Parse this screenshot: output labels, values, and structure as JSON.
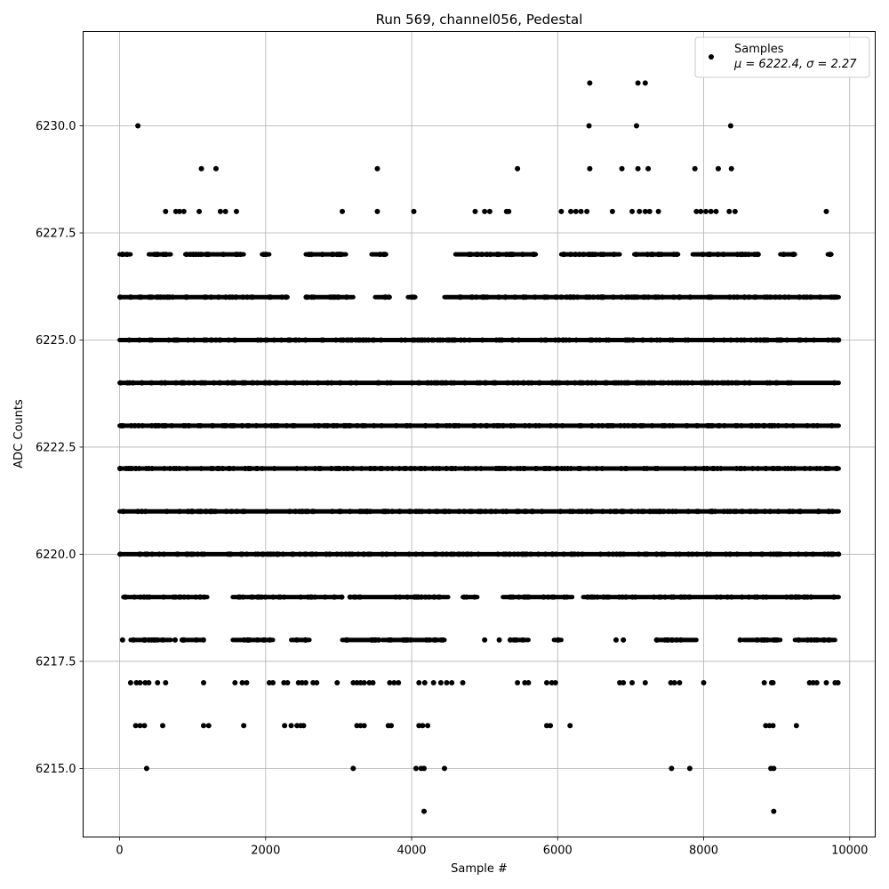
{
  "chart_data": {
    "type": "scatter",
    "title": "Run 569, channel056, Pedestal",
    "xlabel": "Sample #",
    "ylabel": "ADC Counts",
    "xlim": [
      -500,
      10350
    ],
    "ylim": [
      6213.4,
      6232.2
    ],
    "xticks": [
      0,
      2000,
      4000,
      6000,
      8000,
      10000
    ],
    "xtick_labels": [
      "0",
      "2000",
      "4000",
      "6000",
      "8000",
      "10000"
    ],
    "yticks": [
      6215.0,
      6217.5,
      6220.0,
      6222.5,
      6225.0,
      6227.5,
      6230.0
    ],
    "ytick_labels": [
      "6215.0",
      "6217.5",
      "6220.0",
      "6222.5",
      "6225.0",
      "6227.5",
      "6230.0"
    ],
    "grid": true,
    "legend": {
      "placement": "top-right",
      "label": "Samples",
      "stats": "μ = 6222.4, σ = 2.27"
    },
    "marker_color": "#000000",
    "series": [
      {
        "name": "Samples",
        "n_samples": 9850,
        "mean": 6222.4,
        "sigma": 2.27,
        "x_range": [
          0,
          9850
        ],
        "level_coverage": [
          {
            "y": 6222,
            "segments": [
              [
                0,
                9850
              ]
            ]
          },
          {
            "y": 6223,
            "segments": [
              [
                0,
                9850
              ]
            ]
          },
          {
            "y": 6221,
            "segments": [
              [
                0,
                9850
              ]
            ]
          },
          {
            "y": 6224,
            "segments": [
              [
                0,
                9850
              ]
            ]
          },
          {
            "y": 6220,
            "segments": [
              [
                0,
                9850
              ]
            ]
          },
          {
            "y": 6225,
            "segments": [
              [
                0,
                9850
              ]
            ]
          },
          {
            "y": 6226,
            "segments": [
              [
                0,
                2300
              ],
              [
                2550,
                3200
              ],
              [
                3500,
                3700
              ],
              [
                3950,
                4050
              ],
              [
                4450,
                9850
              ]
            ]
          },
          {
            "y": 6219,
            "segments": [
              [
                50,
                1200
              ],
              [
                1550,
                3050
              ],
              [
                3150,
                4500
              ],
              [
                4700,
                4900
              ],
              [
                5250,
                6200
              ],
              [
                6350,
                9850
              ]
            ]
          },
          {
            "y": 6227,
            "segments": [
              [
                0,
                150
              ],
              [
                400,
                700
              ],
              [
                900,
                1700
              ],
              [
                1950,
                2050
              ],
              [
                2550,
                3100
              ],
              [
                3450,
                3650
              ],
              [
                4600,
                5700
              ],
              [
                6050,
                6850
              ],
              [
                7050,
                7650
              ],
              [
                7850,
                8750
              ],
              [
                9050,
                9250
              ],
              [
                9700,
                9750
              ]
            ]
          },
          {
            "y": 6218,
            "segments": [
              [
                150,
                700
              ],
              [
                850,
                1150
              ],
              [
                1550,
                2100
              ],
              [
                2350,
                2600
              ],
              [
                3050,
                3550
              ],
              [
                3600,
                4450
              ],
              [
                5350,
                5600
              ],
              [
                5950,
                6050
              ],
              [
                7350,
                7900
              ],
              [
                8550,
                9050
              ],
              [
                9250,
                9800
              ]
            ]
          }
        ],
        "points": [
          [
            40,
            6218
          ],
          [
            400,
            6218
          ],
          [
            480,
            6218
          ],
          [
            760,
            6218
          ],
          [
            5000,
            6218
          ],
          [
            5200,
            6218
          ],
          [
            6800,
            6218
          ],
          [
            6900,
            6218
          ],
          [
            8500,
            6218
          ],
          [
            150,
            6217
          ],
          [
            230,
            6217
          ],
          [
            280,
            6217
          ],
          [
            350,
            6217
          ],
          [
            400,
            6217
          ],
          [
            520,
            6217
          ],
          [
            630,
            6217
          ],
          [
            1150,
            6217
          ],
          [
            1580,
            6217
          ],
          [
            1680,
            6217
          ],
          [
            1740,
            6217
          ],
          [
            2050,
            6217
          ],
          [
            2100,
            6217
          ],
          [
            2250,
            6217
          ],
          [
            2300,
            6217
          ],
          [
            2450,
            6217
          ],
          [
            2500,
            6217
          ],
          [
            2550,
            6217
          ],
          [
            2650,
            6217
          ],
          [
            2700,
            6217
          ],
          [
            2980,
            6217
          ],
          [
            3200,
            6217
          ],
          [
            3250,
            6217
          ],
          [
            3300,
            6217
          ],
          [
            3350,
            6217
          ],
          [
            3420,
            6217
          ],
          [
            3470,
            6217
          ],
          [
            3700,
            6217
          ],
          [
            3760,
            6217
          ],
          [
            3820,
            6217
          ],
          [
            4100,
            6217
          ],
          [
            4180,
            6217
          ],
          [
            4300,
            6217
          ],
          [
            4400,
            6217
          ],
          [
            4480,
            6217
          ],
          [
            4550,
            6217
          ],
          [
            4700,
            6217
          ],
          [
            5450,
            6217
          ],
          [
            5550,
            6217
          ],
          [
            5600,
            6217
          ],
          [
            5850,
            6217
          ],
          [
            5920,
            6217
          ],
          [
            5970,
            6217
          ],
          [
            6850,
            6217
          ],
          [
            6900,
            6217
          ],
          [
            7020,
            6217
          ],
          [
            7200,
            6217
          ],
          [
            7550,
            6217
          ],
          [
            7600,
            6217
          ],
          [
            7670,
            6217
          ],
          [
            8000,
            6217
          ],
          [
            8830,
            6217
          ],
          [
            8930,
            6217
          ],
          [
            8950,
            6217
          ],
          [
            9450,
            6217
          ],
          [
            9500,
            6217
          ],
          [
            9550,
            6217
          ],
          [
            9680,
            6217
          ],
          [
            9800,
            6217
          ],
          [
            9840,
            6217
          ],
          [
            220,
            6216
          ],
          [
            280,
            6216
          ],
          [
            340,
            6216
          ],
          [
            590,
            6216
          ],
          [
            1150,
            6216
          ],
          [
            1220,
            6216
          ],
          [
            1700,
            6216
          ],
          [
            2260,
            6216
          ],
          [
            2350,
            6216
          ],
          [
            2430,
            6216
          ],
          [
            2480,
            6216
          ],
          [
            2520,
            6216
          ],
          [
            3250,
            6216
          ],
          [
            3300,
            6216
          ],
          [
            3350,
            6216
          ],
          [
            3680,
            6216
          ],
          [
            3720,
            6216
          ],
          [
            4100,
            6216
          ],
          [
            4150,
            6216
          ],
          [
            4220,
            6216
          ],
          [
            5850,
            6216
          ],
          [
            5900,
            6216
          ],
          [
            6170,
            6216
          ],
          [
            8850,
            6216
          ],
          [
            8900,
            6216
          ],
          [
            8950,
            6216
          ],
          [
            9270,
            6216
          ],
          [
            370,
            6215
          ],
          [
            3200,
            6215
          ],
          [
            4060,
            6215
          ],
          [
            4130,
            6215
          ],
          [
            4170,
            6215
          ],
          [
            4450,
            6215
          ],
          [
            7560,
            6215
          ],
          [
            7810,
            6215
          ],
          [
            8920,
            6215
          ],
          [
            8960,
            6215
          ],
          [
            4170,
            6214
          ],
          [
            8960,
            6214
          ],
          [
            630,
            6228
          ],
          [
            770,
            6228
          ],
          [
            820,
            6228
          ],
          [
            880,
            6228
          ],
          [
            1090,
            6228
          ],
          [
            1380,
            6228
          ],
          [
            1450,
            6228
          ],
          [
            1600,
            6228
          ],
          [
            3050,
            6228
          ],
          [
            3530,
            6228
          ],
          [
            4030,
            6228
          ],
          [
            4870,
            6228
          ],
          [
            5000,
            6228
          ],
          [
            5070,
            6228
          ],
          [
            5300,
            6228
          ],
          [
            5330,
            6228
          ],
          [
            6050,
            6228
          ],
          [
            6180,
            6228
          ],
          [
            6250,
            6228
          ],
          [
            6320,
            6228
          ],
          [
            6400,
            6228
          ],
          [
            6750,
            6228
          ],
          [
            7020,
            6228
          ],
          [
            7120,
            6228
          ],
          [
            7200,
            6228
          ],
          [
            7260,
            6228
          ],
          [
            7380,
            6228
          ],
          [
            7900,
            6228
          ],
          [
            7960,
            6228
          ],
          [
            8030,
            6228
          ],
          [
            8100,
            6228
          ],
          [
            8170,
            6228
          ],
          [
            8350,
            6228
          ],
          [
            8430,
            6228
          ],
          [
            9680,
            6228
          ],
          [
            1120,
            6229
          ],
          [
            1320,
            6229
          ],
          [
            3530,
            6229
          ],
          [
            5450,
            6229
          ],
          [
            6440,
            6229
          ],
          [
            6880,
            6229
          ],
          [
            7100,
            6229
          ],
          [
            7240,
            6229
          ],
          [
            7880,
            6229
          ],
          [
            8200,
            6229
          ],
          [
            8380,
            6229
          ],
          [
            250,
            6230
          ],
          [
            6430,
            6230
          ],
          [
            7080,
            6230
          ],
          [
            8370,
            6230
          ],
          [
            6440,
            6231
          ],
          [
            7100,
            6231
          ],
          [
            7200,
            6231
          ]
        ]
      }
    ]
  }
}
